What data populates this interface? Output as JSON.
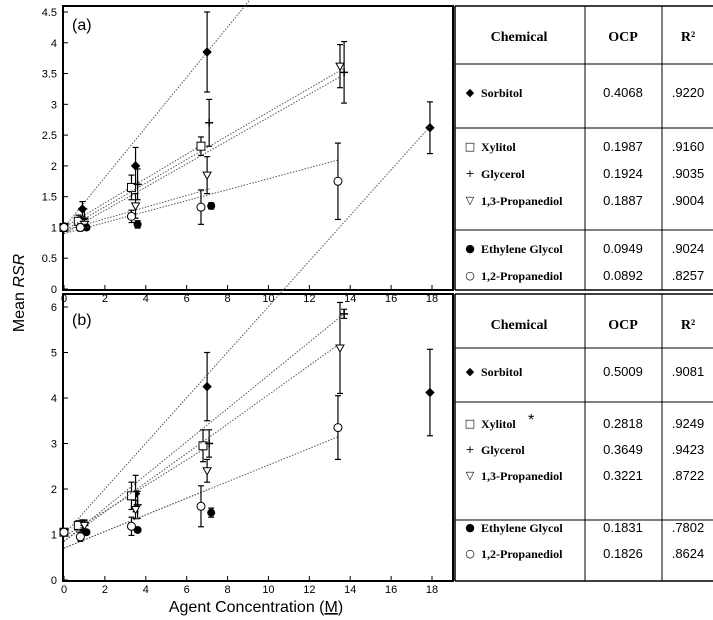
{
  "figure": {
    "ylabel_prefix": "Mean ",
    "ylabel_var": "RSR",
    "xlabel_prefix": "Agent Concentration (",
    "xlabel_unit": "M",
    "xlabel_suffix": ")"
  },
  "chart_data": [
    {
      "type": "scatter",
      "panel_label": "(a)",
      "xlim": [
        0,
        18
      ],
      "ylim": [
        0,
        4.5
      ],
      "x_ticks": [
        "0",
        "2",
        "4",
        "6",
        "8",
        "10",
        "12",
        "14",
        "16",
        "18"
      ],
      "y_ticks": [
        "0",
        "0.5",
        "1",
        "1.5",
        "2",
        "2.5",
        "3",
        "3.5",
        "4",
        "4.5"
      ],
      "grid": false,
      "fit_lines": "dotted linear fit per chemical",
      "series": [
        {
          "name": "Sorbitol",
          "marker": "diamond",
          "x": [
            0,
            0.9,
            3.5,
            7,
            17.9
          ],
          "y": [
            1.0,
            1.3,
            2.0,
            3.85,
            2.62
          ],
          "err": [
            0.05,
            0.12,
            0.3,
            0.65,
            0.42
          ],
          "fit": {
            "intercept": 1.0,
            "slope": 0.4068
          }
        },
        {
          "name": "Xylitol",
          "marker": "square",
          "x": [
            0,
            0.7,
            3.3,
            6.7
          ],
          "y": [
            1.0,
            1.1,
            1.65,
            2.32
          ],
          "err": [
            0.04,
            0.1,
            0.2,
            0.15
          ],
          "fit": {
            "intercept": 1.0,
            "slope": 0.1987
          }
        },
        {
          "name": "Glycerol",
          "marker": "plus",
          "x": [
            0,
            1.0,
            3.6,
            7.1,
            13.7
          ],
          "y": [
            1.0,
            1.15,
            1.7,
            2.7,
            3.52
          ],
          "err": [
            0.05,
            0.15,
            0.25,
            0.38,
            0.5
          ],
          "fit": {
            "intercept": 0.95,
            "slope": 0.1924
          }
        },
        {
          "name": "1,3-Propanediol",
          "marker": "triangle-down",
          "x": [
            0,
            1.0,
            3.5,
            7.0,
            13.5
          ],
          "y": [
            1.0,
            1.05,
            1.35,
            1.85,
            3.62
          ],
          "err": [
            0.04,
            0.08,
            0.2,
            0.3,
            0.35
          ],
          "fit": {
            "intercept": 0.9,
            "slope": 0.1887
          }
        },
        {
          "name": "Ethylene Glycol",
          "marker": "filled-circle",
          "x": [
            0,
            1.1,
            3.6,
            7.2
          ],
          "y": [
            1.02,
            1.0,
            1.05,
            1.35
          ],
          "err": [
            0.04,
            0.04,
            0.06,
            0.05
          ],
          "fit": {
            "intercept": 0.95,
            "slope": 0.0949
          }
        },
        {
          "name": "1,2-Propanediol",
          "marker": "open-circle",
          "x": [
            0,
            0.8,
            3.3,
            6.7,
            13.4
          ],
          "y": [
            1.0,
            1.0,
            1.18,
            1.33,
            1.75
          ],
          "err": [
            0.04,
            0.06,
            0.1,
            0.28,
            0.62
          ],
          "fit": {
            "intercept": 0.9,
            "slope": 0.0892
          }
        }
      ],
      "table": {
        "headers": [
          "Chemical",
          "OCP",
          "R²"
        ],
        "groups": [
          [
            {
              "marker": "◆",
              "name": "Sorbitol",
              "ocp": "0.4068",
              "r2": ".9220"
            }
          ],
          [
            {
              "marker": "□",
              "name": "Xylitol",
              "ocp": "0.1987",
              "r2": ".9160"
            },
            {
              "marker": "+",
              "name": "Glycerol",
              "ocp": "0.1924",
              "r2": ".9035"
            },
            {
              "marker": "▽",
              "name": "1,3-Propanediol",
              "ocp": "0.1887",
              "r2": ".9004"
            }
          ],
          [
            {
              "marker": "●",
              "name": "Ethylene Glycol",
              "ocp": "0.0949",
              "r2": ".9024"
            },
            {
              "marker": "○",
              "name": "1,2-Propanediol",
              "ocp": "0.0892",
              "r2": ".8257"
            }
          ]
        ]
      }
    },
    {
      "type": "scatter",
      "panel_label": "(b)",
      "xlim": [
        0,
        18
      ],
      "ylim": [
        0,
        6
      ],
      "x_ticks": [
        "0",
        "2",
        "4",
        "6",
        "8",
        "10",
        "12",
        "14",
        "16",
        "18"
      ],
      "y_ticks": [
        "0",
        "1",
        "2",
        "3",
        "4",
        "5",
        "6"
      ],
      "grid": false,
      "fit_lines": "dotted linear fit per chemical",
      "series": [
        {
          "name": "Sorbitol",
          "marker": "diamond",
          "x": [
            0,
            0.9,
            3.5,
            7.0,
            17.9
          ],
          "y": [
            1.05,
            1.2,
            1.9,
            4.25,
            4.12
          ],
          "err": [
            0.08,
            0.12,
            0.4,
            0.75,
            0.95
          ],
          "fit": {
            "intercept": 1.0,
            "slope": 0.5009
          }
        },
        {
          "name": "Xylitol",
          "marker": "square",
          "x": [
            0,
            0.7,
            3.3,
            6.8
          ],
          "y": [
            1.05,
            1.2,
            1.85,
            2.95
          ],
          "err": [
            0.06,
            0.1,
            0.3,
            0.35
          ],
          "fit": {
            "intercept": 0.95,
            "slope": 0.2818
          }
        },
        {
          "name": "Glycerol",
          "marker": "plus",
          "x": [
            0,
            1.0,
            3.6,
            7.1,
            13.7
          ],
          "y": [
            1.05,
            1.2,
            1.65,
            3.0,
            5.85
          ],
          "err": [
            0.06,
            0.12,
            0.3,
            0.3,
            0.1
          ],
          "fit": {
            "intercept": 0.85,
            "slope": 0.3649
          }
        },
        {
          "name": "1,3-Propanediol",
          "marker": "triangle-down",
          "x": [
            0,
            1.0,
            3.5,
            7.0,
            13.5
          ],
          "y": [
            1.05,
            1.2,
            1.55,
            2.4,
            5.1
          ],
          "err": [
            0.06,
            0.1,
            0.2,
            0.25,
            1.0
          ],
          "fit": {
            "intercept": 0.85,
            "slope": 0.3221
          }
        },
        {
          "name": "Ethylene Glycol",
          "marker": "filled-circle",
          "x": [
            0,
            1.1,
            3.6,
            7.2
          ],
          "y": [
            1.05,
            1.05,
            1.1,
            1.48
          ],
          "err": [
            0.06,
            0.05,
            0.05,
            0.1
          ],
          "fit": {
            "intercept": 0.7,
            "slope": 0.1831
          }
        },
        {
          "name": "1,2-Propanediol",
          "marker": "open-circle",
          "x": [
            0,
            0.8,
            3.3,
            6.7,
            13.4
          ],
          "y": [
            1.05,
            0.95,
            1.18,
            1.62,
            3.35
          ],
          "err": [
            0.06,
            0.1,
            0.2,
            0.45,
            0.7
          ],
          "fit": {
            "intercept": 0.7,
            "slope": 0.1826
          }
        }
      ],
      "table": {
        "headers": [
          "Chemical",
          "OCP",
          "R²"
        ],
        "groups": [
          [
            {
              "marker": "◆",
              "name": "Sorbitol",
              "ocp": "0.5009",
              "r2": ".9081"
            }
          ],
          [
            {
              "marker": "□",
              "name": "Xylitol",
              "star": "*",
              "ocp": "0.2818",
              "r2": ".9249"
            },
            {
              "marker": "+",
              "name": "Glycerol",
              "ocp": "0.3649",
              "r2": ".9423"
            },
            {
              "marker": "▽",
              "name": "1,3-Propanediol",
              "ocp": "0.3221",
              "r2": ".8722"
            }
          ],
          [
            {
              "marker": "●",
              "name": "Ethylene Glycol",
              "ocp": "0.1831",
              "r2": ".7802"
            },
            {
              "marker": "○",
              "name": "1,2-Propanediol",
              "ocp": "0.1826",
              "r2": ".8624"
            }
          ]
        ]
      }
    }
  ]
}
